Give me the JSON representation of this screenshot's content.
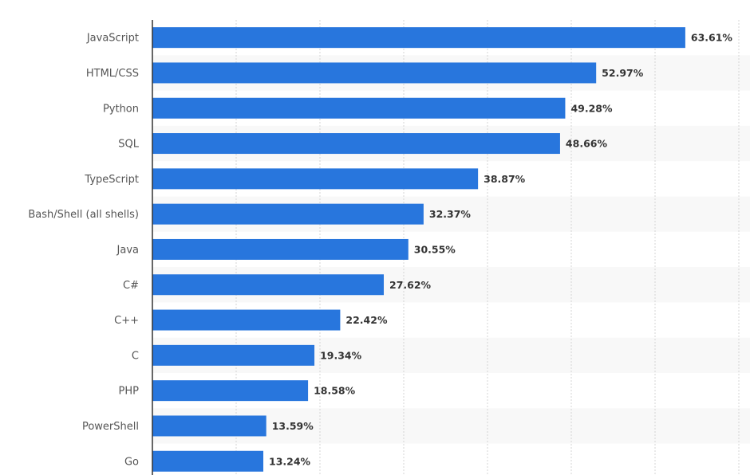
{
  "chart_data": {
    "type": "bar",
    "orientation": "horizontal",
    "categories": [
      "JavaScript",
      "HTML/CSS",
      "Python",
      "SQL",
      "TypeScript",
      "Bash/Shell (all shells)",
      "Java",
      "C#",
      "C++",
      "C",
      "PHP",
      "PowerShell",
      "Go"
    ],
    "values": [
      63.61,
      52.97,
      49.28,
      48.66,
      38.87,
      32.37,
      30.55,
      27.62,
      22.42,
      19.34,
      18.58,
      13.59,
      13.24
    ],
    "data_labels": [
      "63.61%",
      "52.97%",
      "49.28%",
      "48.66%",
      "38.87%",
      "32.37%",
      "30.55%",
      "27.62%",
      "22.42%",
      "19.34%",
      "18.58%",
      "13.59%",
      "13.24%"
    ],
    "unit": "%",
    "xlim": [
      0,
      70
    ],
    "grid": true,
    "bar_color": "#2876dd",
    "band_color": "#f8f8f8"
  }
}
